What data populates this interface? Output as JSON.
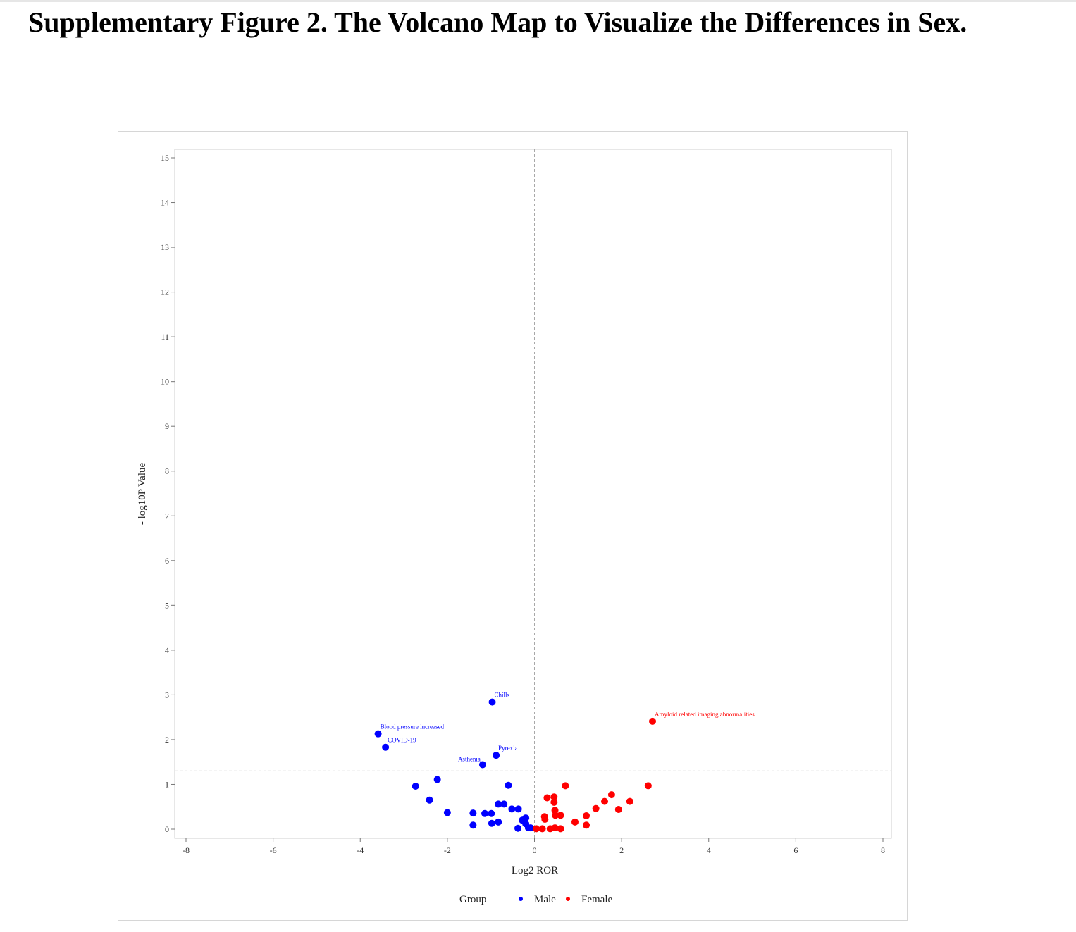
{
  "page": {
    "title": "Supplementary Figure 2. The Volcano Map to Visualize the Differences in Sex."
  },
  "chart_data": {
    "type": "scatter",
    "title": "",
    "xlabel": "Log2 ROR",
    "ylabel": "- log10P Value",
    "xlim": [
      -8,
      8
    ],
    "ylim": [
      0,
      15
    ],
    "x_ticks": [
      "-8",
      "-6",
      "-4",
      "-2",
      "0",
      "2",
      "4",
      "6",
      "8"
    ],
    "y_ticks": [
      "0",
      "1",
      "2",
      "3",
      "4",
      "5",
      "6",
      "7",
      "8",
      "9",
      "10",
      "11",
      "12",
      "13",
      "14",
      "15"
    ],
    "reference_lines": {
      "vertical_x": 0,
      "horizontal_y": 1.3
    },
    "grid": false,
    "legend": {
      "title": "Group",
      "placement": "bottom",
      "entries": [
        {
          "name": "Male",
          "color": "#0000ff"
        },
        {
          "name": "Female",
          "color": "#ff0000"
        }
      ]
    },
    "series": [
      {
        "name": "Male",
        "color": "#0000ff",
        "points": [
          {
            "x": -3.59,
            "y": 2.13,
            "label": "Blood pressure increased"
          },
          {
            "x": -3.42,
            "y": 1.83,
            "label": "COVID-19"
          },
          {
            "x": -0.97,
            "y": 2.84,
            "label": "Chills"
          },
          {
            "x": -0.88,
            "y": 1.65,
            "label": "Pyrexia"
          },
          {
            "x": -1.19,
            "y": 1.44,
            "label": "Asthenia"
          },
          {
            "x": -2.73,
            "y": 0.96
          },
          {
            "x": -2.23,
            "y": 1.11
          },
          {
            "x": -2.41,
            "y": 0.65
          },
          {
            "x": -2.0,
            "y": 0.37
          },
          {
            "x": -1.41,
            "y": 0.36
          },
          {
            "x": -1.41,
            "y": 0.09
          },
          {
            "x": -1.14,
            "y": 0.35
          },
          {
            "x": -0.99,
            "y": 0.35
          },
          {
            "x": -0.98,
            "y": 0.13
          },
          {
            "x": -0.83,
            "y": 0.16
          },
          {
            "x": -0.6,
            "y": 0.98
          },
          {
            "x": -0.83,
            "y": 0.56
          },
          {
            "x": -0.7,
            "y": 0.56
          },
          {
            "x": -0.52,
            "y": 0.45
          },
          {
            "x": -0.37,
            "y": 0.45
          },
          {
            "x": -0.38,
            "y": 0.02
          },
          {
            "x": -0.28,
            "y": 0.2
          },
          {
            "x": -0.2,
            "y": 0.25
          },
          {
            "x": -0.2,
            "y": 0.12
          },
          {
            "x": -0.14,
            "y": 0.03
          },
          {
            "x": -0.09,
            "y": 0.03
          }
        ]
      },
      {
        "name": "Female",
        "color": "#ff0000",
        "points": [
          {
            "x": 2.71,
            "y": 2.41,
            "label": "Amyloid related imaging abnormalities"
          },
          {
            "x": 2.61,
            "y": 0.97
          },
          {
            "x": 0.71,
            "y": 0.97
          },
          {
            "x": 0.29,
            "y": 0.7
          },
          {
            "x": 0.45,
            "y": 0.72
          },
          {
            "x": 0.45,
            "y": 0.6
          },
          {
            "x": 0.47,
            "y": 0.42
          },
          {
            "x": 0.48,
            "y": 0.31
          },
          {
            "x": 0.6,
            "y": 0.31
          },
          {
            "x": 0.23,
            "y": 0.28
          },
          {
            "x": 0.24,
            "y": 0.22
          },
          {
            "x": 0.04,
            "y": 0.01
          },
          {
            "x": 0.18,
            "y": 0.01
          },
          {
            "x": 0.36,
            "y": 0.01
          },
          {
            "x": 0.47,
            "y": 0.03
          },
          {
            "x": 0.6,
            "y": 0.01
          },
          {
            "x": 0.93,
            "y": 0.16
          },
          {
            "x": 1.19,
            "y": 0.09
          },
          {
            "x": 1.19,
            "y": 0.3
          },
          {
            "x": 1.41,
            "y": 0.46
          },
          {
            "x": 1.61,
            "y": 0.62
          },
          {
            "x": 1.77,
            "y": 0.77
          },
          {
            "x": 1.93,
            "y": 0.44
          },
          {
            "x": 2.19,
            "y": 0.62
          }
        ]
      }
    ]
  }
}
